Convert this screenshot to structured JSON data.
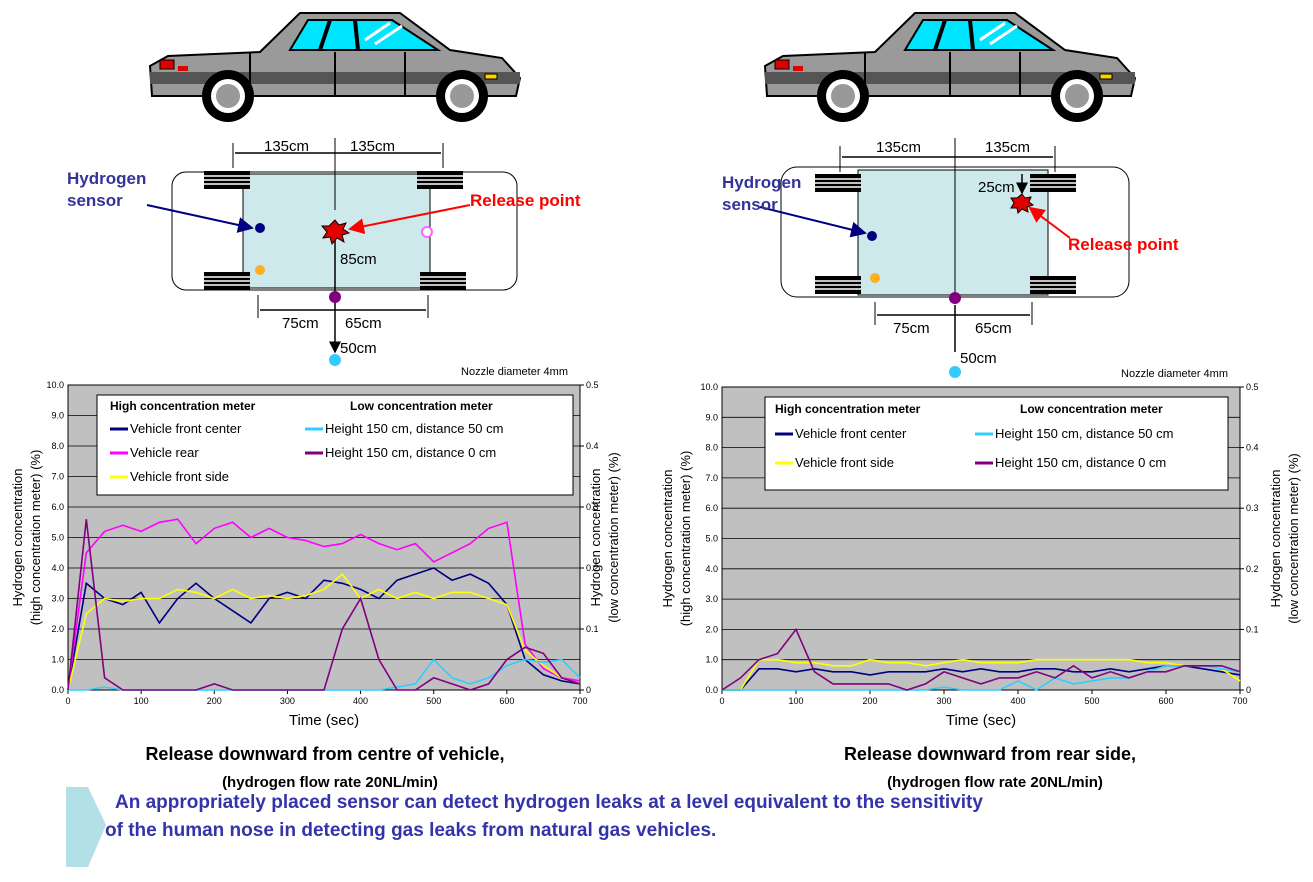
{
  "diagrams": [
    {
      "dims": [
        "135cm",
        "135cm",
        "85cm",
        "75cm",
        "65cm",
        "50cm"
      ],
      "sensor_label": [
        "Hydrogen",
        "sensor"
      ],
      "release_label": "Release point"
    },
    {
      "dims": [
        "135cm",
        "135cm",
        "25cm",
        "75cm",
        "65cm",
        "50cm"
      ],
      "sensor_label": [
        "Hydrogen",
        "sensor"
      ],
      "release_label": "Release point"
    }
  ],
  "chart_data": [
    {
      "type": "line",
      "annotation": "Nozzle diameter 4mm",
      "xlabel": "Time (sec)",
      "ylabel": [
        "Hydrogen concentration",
        "(high concentration meter) (%)"
      ],
      "y2label": [
        "Hydrogen concentration",
        "(low concentration meter) (%)"
      ],
      "caption": [
        "Release downward from centre of vehicle,",
        "(hydrogen flow rate 20NL/min)"
      ],
      "legend_titles": [
        "High concentration meter",
        "Low concentration meter"
      ],
      "xlim": [
        0,
        700
      ],
      "xticks": [
        0,
        100,
        200,
        300,
        400,
        500,
        600,
        700
      ],
      "ylim": [
        0,
        10
      ],
      "yticks": [
        {
          "value": 0,
          "label": "0.0"
        },
        {
          "value": 1,
          "label": "1.0"
        },
        {
          "value": 2,
          "label": "2.0"
        },
        {
          "value": 3,
          "label": "3.0"
        },
        {
          "value": 4,
          "label": "4.0"
        },
        {
          "value": 5,
          "label": "5.0"
        },
        {
          "value": 6,
          "label": "6.0"
        },
        {
          "value": 7,
          "label": "7.0"
        },
        {
          "value": 8,
          "label": "8.0"
        },
        {
          "value": 9,
          "label": "9.0"
        },
        {
          "value": 10,
          "label": "10.0"
        }
      ],
      "y2lim": [
        0,
        0.5
      ],
      "y2ticks": [
        0,
        0.1,
        0.2,
        0.3,
        0.4,
        0.5
      ],
      "grid": true,
      "x": [
        0,
        25,
        50,
        75,
        100,
        125,
        150,
        175,
        200,
        225,
        250,
        275,
        300,
        325,
        350,
        375,
        400,
        425,
        450,
        475,
        500,
        525,
        550,
        575,
        600,
        625,
        650,
        675,
        700
      ],
      "series": [
        {
          "name": "Vehicle front center",
          "color": "#000080",
          "values": [
            0,
            3.5,
            3.0,
            2.8,
            3.2,
            2.2,
            3.0,
            3.5,
            3.0,
            2.6,
            2.2,
            3.0,
            3.2,
            3.0,
            3.6,
            3.5,
            3.3,
            3.0,
            3.6,
            3.8,
            4.0,
            3.6,
            3.8,
            3.5,
            2.8,
            1.0,
            0.5,
            0.3,
            0.2
          ]
        },
        {
          "name": "Vehicle rear",
          "color": "#ff00ff",
          "values": [
            0,
            4.5,
            5.2,
            5.4,
            5.2,
            5.5,
            5.6,
            4.8,
            5.3,
            5.5,
            5.0,
            5.3,
            5.0,
            4.9,
            4.7,
            4.8,
            5.1,
            4.8,
            4.6,
            4.8,
            4.2,
            4.5,
            4.8,
            5.3,
            5.5,
            1.5,
            0.7,
            0.4,
            0.3
          ]
        },
        {
          "name": "Vehicle front side",
          "color": "#ffff00",
          "values": [
            0,
            2.5,
            3.0,
            2.9,
            3.0,
            3.0,
            3.3,
            3.2,
            3.0,
            3.3,
            3.0,
            3.1,
            3.0,
            3.1,
            3.3,
            3.8,
            3.0,
            3.3,
            3.0,
            3.2,
            3.0,
            3.2,
            3.2,
            3.0,
            2.8,
            1.3,
            0.8,
            0.4,
            0.2
          ]
        },
        {
          "name": "Height 150 cm, distance 50 cm",
          "color": "#33ccff",
          "axis": "y2",
          "values": [
            0,
            0,
            0.005,
            0,
            0,
            0,
            0,
            0,
            0,
            0,
            0,
            0,
            0,
            0,
            0,
            0,
            0,
            0,
            0.005,
            0.01,
            0.05,
            0.02,
            0.01,
            0.02,
            0.04,
            0.05,
            0.045,
            0.05,
            0.02
          ]
        },
        {
          "name": "Height 150 cm, distance 0 cm",
          "color": "#800080",
          "axis": "y2",
          "values": [
            0,
            0.28,
            0.02,
            0,
            0,
            0,
            0,
            0,
            0.01,
            0,
            0,
            0,
            0,
            0,
            0,
            0.1,
            0.15,
            0.05,
            0,
            0,
            0.02,
            0.01,
            0,
            0.01,
            0.05,
            0.07,
            0.06,
            0.02,
            0.01
          ]
        }
      ]
    },
    {
      "type": "line",
      "annotation": "Nozzle diameter 4mm",
      "xlabel": "Time (sec)",
      "ylabel": [
        "Hydrogen concentration",
        "(high concentration meter) (%)"
      ],
      "y2label": [
        "Hydrogen concentration",
        "(low concentration meter) (%)"
      ],
      "caption": [
        "Release downward from rear side,",
        "(hydrogen flow rate 20NL/min)"
      ],
      "legend_titles": [
        "High concentration meter",
        "Low concentration meter"
      ],
      "xlim": [
        0,
        700
      ],
      "xticks": [
        0,
        100,
        200,
        300,
        400,
        500,
        600,
        700
      ],
      "ylim": [
        0,
        10
      ],
      "yticks": [
        {
          "value": 0,
          "label": "0.0"
        },
        {
          "value": 1,
          "label": "1.0"
        },
        {
          "value": 2,
          "label": "2.0"
        },
        {
          "value": 3,
          "label": "3.0"
        },
        {
          "value": 4,
          "label": "4.0"
        },
        {
          "value": 5,
          "label": "5.0"
        },
        {
          "value": 6,
          "label": "6.0"
        },
        {
          "value": 7,
          "label": "7.0"
        },
        {
          "value": 8,
          "label": "8.0"
        },
        {
          "value": 9,
          "label": "9.0"
        },
        {
          "value": 10,
          "label": "10.0"
        }
      ],
      "y2lim": [
        0,
        0.5
      ],
      "y2ticks": [
        0,
        0.1,
        0.2,
        0.3,
        0.4,
        0.5
      ],
      "grid": true,
      "x": [
        0,
        25,
        50,
        75,
        100,
        125,
        150,
        175,
        200,
        225,
        250,
        275,
        300,
        325,
        350,
        375,
        400,
        425,
        450,
        475,
        500,
        525,
        550,
        575,
        600,
        625,
        650,
        675,
        700
      ],
      "series": [
        {
          "name": "Vehicle front center",
          "color": "#000080",
          "values": [
            0,
            0,
            0.7,
            0.7,
            0.6,
            0.7,
            0.6,
            0.6,
            0.5,
            0.6,
            0.6,
            0.6,
            0.7,
            0.6,
            0.7,
            0.6,
            0.6,
            0.7,
            0.7,
            0.6,
            0.6,
            0.7,
            0.6,
            0.7,
            0.8,
            0.8,
            0.7,
            0.6,
            0.5
          ]
        },
        {
          "name": "Vehicle front side",
          "color": "#ffff00",
          "values": [
            0,
            0,
            1.0,
            1.0,
            0.9,
            0.9,
            0.8,
            0.8,
            1.0,
            0.9,
            0.9,
            0.8,
            0.9,
            1.0,
            0.9,
            0.9,
            0.9,
            1.0,
            1.0,
            1.0,
            1.0,
            1.0,
            1.0,
            0.9,
            0.9,
            0.8,
            0.8,
            0.7,
            0.3
          ]
        },
        {
          "name": "Height 150 cm, distance 50 cm",
          "color": "#33ccff",
          "axis": "y2",
          "values": [
            0,
            0,
            0,
            0,
            0,
            0,
            0,
            0,
            0,
            0,
            0,
            0,
            0.005,
            0,
            0,
            0,
            0.015,
            0,
            0.02,
            0.01,
            0.015,
            0.02,
            0.02,
            0.03,
            0.04,
            0.04,
            0.04,
            0.035,
            0.03
          ]
        },
        {
          "name": "Height 150 cm, distance 0 cm",
          "color": "#800080",
          "axis": "y2",
          "values": [
            0,
            0.02,
            0.05,
            0.06,
            0.1,
            0.03,
            0.01,
            0.01,
            0.01,
            0.01,
            0,
            0.01,
            0.03,
            0.02,
            0.01,
            0.02,
            0.02,
            0.03,
            0.02,
            0.04,
            0.02,
            0.03,
            0.02,
            0.03,
            0.03,
            0.04,
            0.04,
            0.04,
            0.03
          ]
        }
      ]
    }
  ],
  "conclusion": [
    "An appropriately placed sensor can detect hydrogen leaks at a level equivalent to the sensitivity",
    "of the human nose in detecting gas leaks from natural gas vehicles."
  ]
}
